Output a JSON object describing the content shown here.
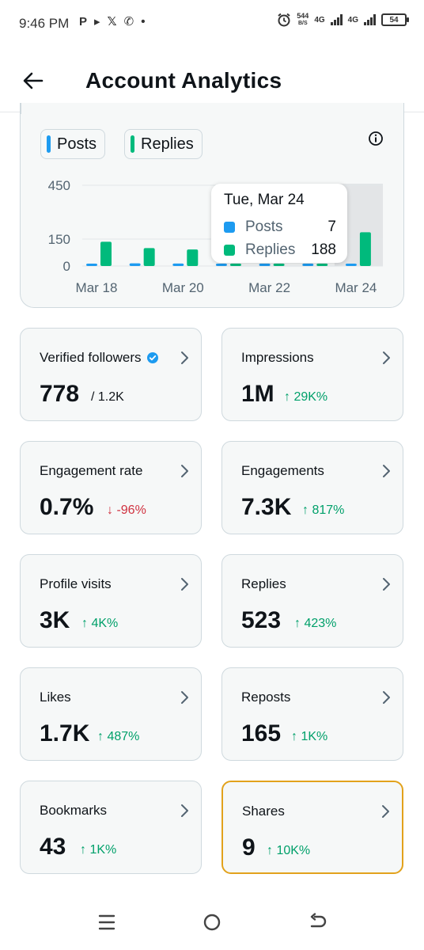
{
  "status_bar": {
    "time": "9:46 PM",
    "left_icons": [
      "P",
      "▸",
      "𝕏",
      "✆",
      "•"
    ],
    "net_speed_value": "544",
    "net_speed_unit": "B/S",
    "network_1": "4G",
    "network_2": "4G",
    "battery": "54"
  },
  "header": {
    "title": "Account Analytics",
    "back_icon": "arrow-left-icon"
  },
  "chart": {
    "legend": [
      {
        "label": "Posts",
        "color": "#1d9bf0"
      },
      {
        "label": "Replies",
        "color": "#00ba7c"
      }
    ],
    "info_icon": "info-icon",
    "tooltip": {
      "date": "Tue, Mar 24",
      "rows": [
        {
          "label": "Posts",
          "value": "7",
          "color": "#1d9bf0"
        },
        {
          "label": "Replies",
          "value": "188",
          "color": "#00ba7c"
        }
      ]
    }
  },
  "chart_data": {
    "type": "bar",
    "categories": [
      "Mar 18",
      "Mar 19",
      "Mar 20",
      "Mar 21",
      "Mar 22",
      "Mar 23",
      "Mar 24"
    ],
    "series": [
      {
        "name": "Posts",
        "values": [
          12,
          15,
          14,
          8,
          6,
          7,
          7
        ]
      },
      {
        "name": "Replies",
        "values": [
          135,
          100,
          92,
          10,
          10,
          10,
          188
        ]
      }
    ],
    "x_tick_labels": [
      "Mar 18",
      "Mar 20",
      "Mar 22",
      "Mar 24"
    ],
    "y_tick_labels": [
      "450",
      "150",
      "0"
    ],
    "y_ticks": [
      450,
      150,
      0
    ],
    "ylim": [
      0,
      450
    ],
    "highlighted_category": "Mar 24"
  },
  "stats": [
    {
      "title": "Verified followers",
      "value": "778",
      "delta": "/ 1.2K",
      "delta_type": "neutral",
      "verified": true
    },
    {
      "title": "Impressions",
      "value": "1M",
      "delta": "↑ 29K%",
      "delta_type": "up"
    },
    {
      "title": "Engagement rate",
      "value": "0.7%",
      "delta": "↓ -96%",
      "delta_type": "down"
    },
    {
      "title": "Engagements",
      "value": "7.3K",
      "delta": "↑ 817%",
      "delta_type": "up"
    },
    {
      "title": "Profile visits",
      "value": "3K",
      "delta": "↑ 4K%",
      "delta_type": "up"
    },
    {
      "title": "Replies",
      "value": "523",
      "delta": "↑ 423%",
      "delta_type": "up"
    },
    {
      "title": "Likes",
      "value": "1.7K",
      "delta": "↑ 487%",
      "delta_type": "up"
    },
    {
      "title": "Reposts",
      "value": "165",
      "delta": "↑ 1K%",
      "delta_type": "up"
    },
    {
      "title": "Bookmarks",
      "value": "43",
      "delta": "↑ 1K%",
      "delta_type": "up"
    },
    {
      "title": "Shares",
      "value": "9",
      "delta": "↑ 10K%",
      "delta_type": "up",
      "highlighted": true
    }
  ],
  "nav": {
    "recents": "menu-icon",
    "home": "home-circle-icon",
    "back": "back-icon"
  }
}
